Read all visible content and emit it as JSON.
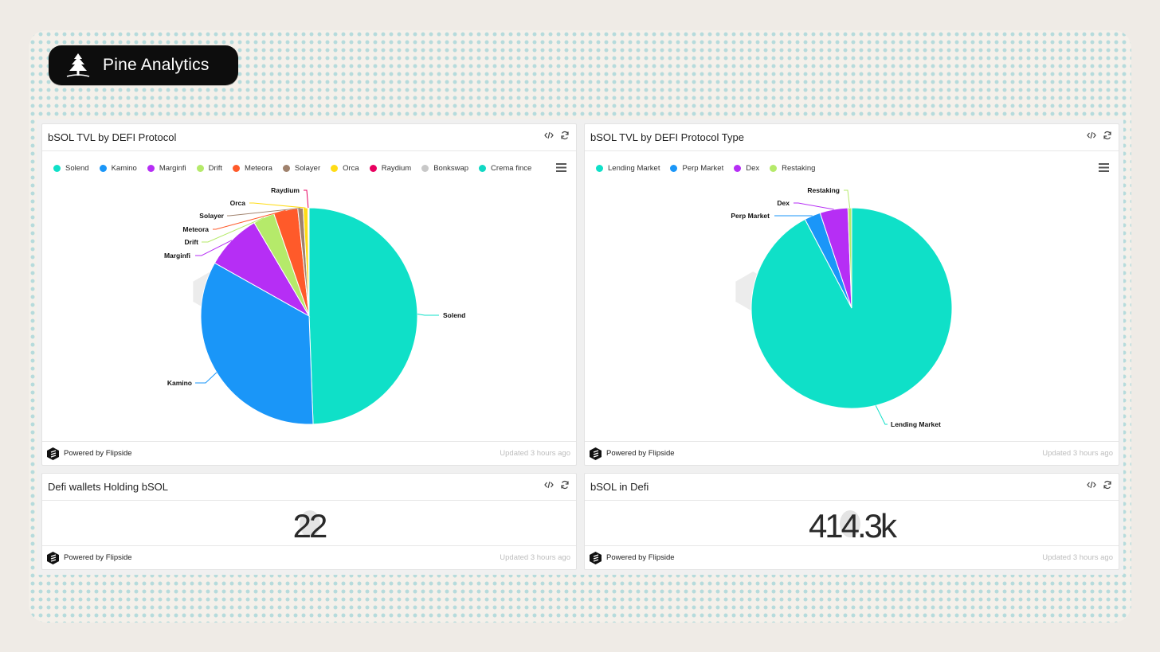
{
  "brand": {
    "name": "Pine Analytics"
  },
  "cards": {
    "protocol": {
      "title": "bSOL TVL by DEFI Protocol",
      "powered": "Powered by Flipside",
      "updated": "Updated 3 hours ago"
    },
    "type": {
      "title": "bSOL TVL by DEFI Protocol Type",
      "powered": "Powered by Flipside",
      "updated": "Updated 3 hours ago"
    },
    "wallets": {
      "title": "Defi wallets Holding bSOL",
      "value": "22",
      "powered": "Powered by Flipside",
      "updated": "Updated 3 hours ago"
    },
    "defi": {
      "title": "bSOL in Defi",
      "value": "414.3k",
      "powered": "Powered by Flipside",
      "updated": "Updated 3 hours ago"
    }
  },
  "chart_data": [
    {
      "type": "pie",
      "title": "bSOL TVL by DEFI Protocol",
      "legend_position": "top",
      "categories": [
        "Solend",
        "Kamino",
        "Marginfi",
        "Drift",
        "Meteora",
        "Solayer",
        "Orca",
        "Raydium",
        "Bonkswap",
        "Crema fince"
      ],
      "values": [
        49.5,
        33.8,
        8.4,
        3.2,
        3.6,
        0.8,
        0.7,
        0.1,
        0.05,
        0.03
      ],
      "colors": [
        "#0fe0c8",
        "#1a96f8",
        "#b62ef5",
        "#b5ea6a",
        "#ff5a2a",
        "#a0826d",
        "#ffdc15",
        "#e8005f",
        "#c8c8c8",
        "#11d8c4"
      ],
      "labeled": [
        "Solend",
        "Kamino",
        "Marginfi",
        "Drift",
        "Meteora",
        "Solayer",
        "Orca",
        "Raydium"
      ]
    },
    {
      "type": "pie",
      "title": "bSOL TVL by DEFI Protocol Type",
      "legend_position": "top",
      "categories": [
        "Lending Market",
        "Perp Market",
        "Dex",
        "Restaking"
      ],
      "values": [
        92.3,
        2.6,
        4.5,
        0.6
      ],
      "colors": [
        "#0fe0c8",
        "#1a96f8",
        "#b62ef5",
        "#b5ea6a"
      ],
      "labeled": [
        "Lending Market",
        "Perp Market",
        "Dex",
        "Restaking"
      ]
    }
  ]
}
